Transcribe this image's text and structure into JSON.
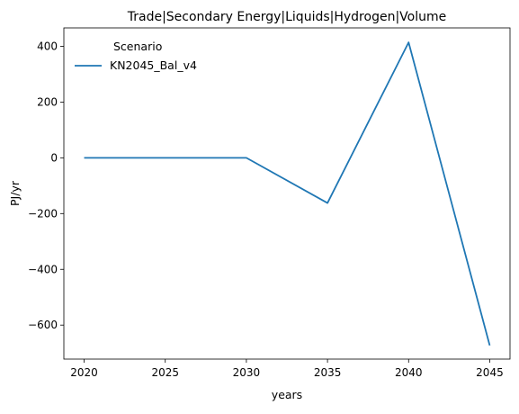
{
  "chart_data": {
    "type": "line",
    "title": "Trade|Secondary Energy|Liquids|Hydrogen|Volume",
    "xlabel": "years",
    "ylabel": "PJ/yr",
    "x": [
      2020,
      2025,
      2030,
      2035,
      2040,
      2045
    ],
    "xticks": [
      "2020",
      "2025",
      "2030",
      "2035",
      "2040",
      "2045"
    ],
    "yticks": [
      "400",
      "200",
      "0",
      "−200",
      "−400",
      "−600"
    ],
    "ytick_values": [
      400,
      200,
      0,
      -200,
      -400,
      -600
    ],
    "xlim": [
      2018.75,
      2046.25
    ],
    "ylim": [
      -722,
      466
    ],
    "series": [
      {
        "name": "KN2045_Bal_v4",
        "color": "#1f77b4",
        "values": [
          0,
          0,
          0,
          -162,
          414,
          -673
        ]
      }
    ],
    "legend": {
      "title": "Scenario",
      "placement": "top-left"
    },
    "grid": false
  }
}
